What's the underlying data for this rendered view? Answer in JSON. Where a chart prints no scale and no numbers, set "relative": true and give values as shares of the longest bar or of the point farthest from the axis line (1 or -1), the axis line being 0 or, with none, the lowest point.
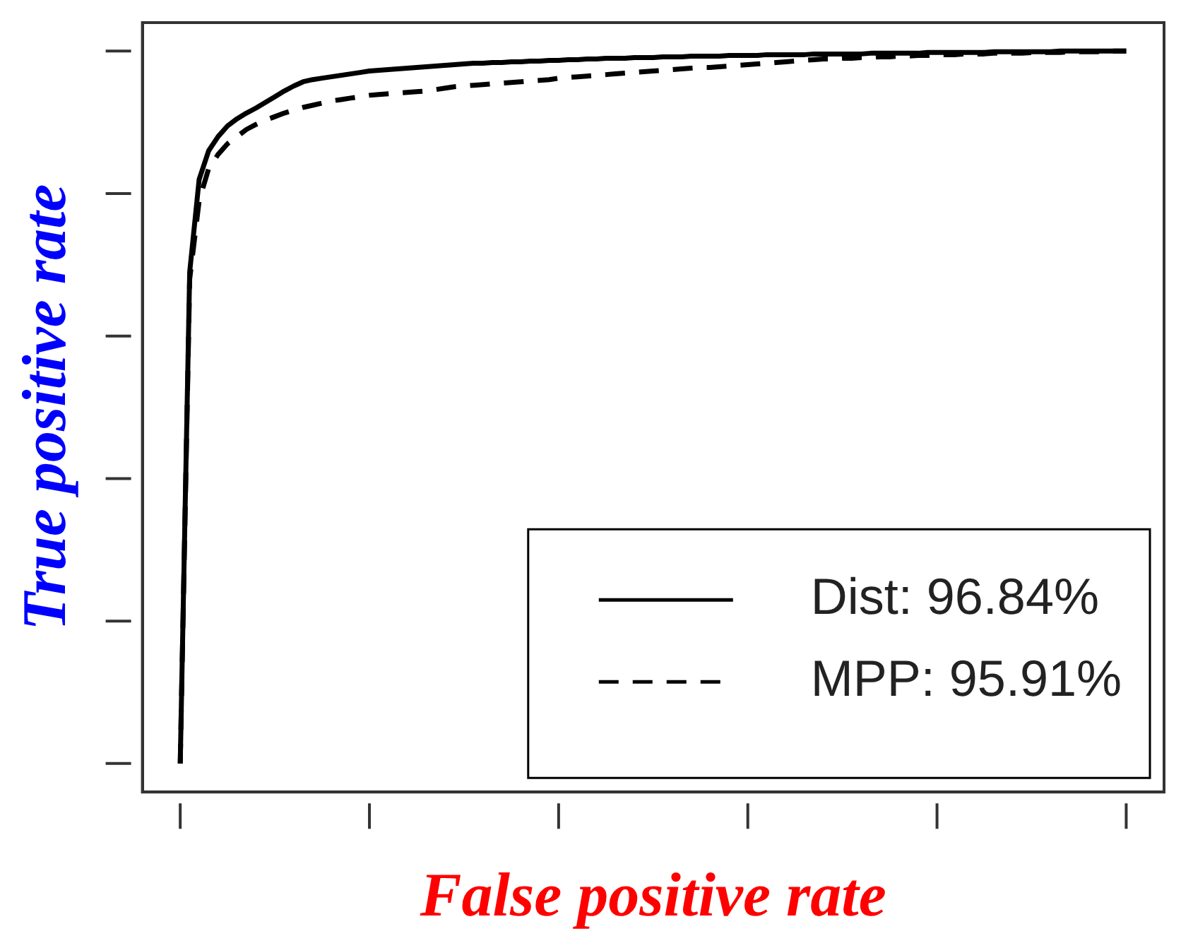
{
  "chart_data": {
    "type": "line",
    "xlabel": "False positive rate",
    "ylabel": "True positive rate",
    "relative": true,
    "grid": false,
    "legend": "bottom right",
    "marker": "none",
    "categories": [
      null,
      null,
      null,
      null,
      null,
      null,
      null,
      null,
      null,
      null,
      null,
      null,
      null,
      null,
      null,
      null,
      null,
      null,
      null,
      null,
      null,
      null,
      null,
      null,
      null,
      null,
      null,
      null,
      null,
      null,
      null,
      null,
      null,
      null,
      null,
      null,
      null,
      null,
      null,
      null,
      null,
      null,
      null,
      null,
      null,
      null,
      null,
      null,
      null,
      null,
      null,
      null,
      null,
      null,
      null,
      null,
      null,
      null,
      null,
      null,
      null,
      null,
      null,
      null,
      null,
      null,
      null,
      null,
      null,
      null,
      null,
      null,
      null,
      null,
      null,
      null,
      null,
      null,
      null,
      null,
      null,
      null,
      null,
      null,
      null,
      null,
      null,
      null,
      null,
      null,
      null,
      null,
      null,
      null,
      null,
      null,
      null,
      null,
      null,
      null,
      null
    ],
    "series": [
      {
        "name": "Dist: 96.84%",
        "color": "#000000",
        "line_style": "solid",
        "values": [
          0,
          0.69,
          0.82,
          0.86,
          0.88,
          0.895,
          0.905,
          0.913,
          0.92,
          0.928,
          0.936,
          0.944,
          0.951,
          0.957,
          0.96,
          0.962,
          0.964,
          0.966,
          0.968,
          0.97,
          0.972,
          0.973,
          0.974,
          0.975,
          0.976,
          0.977,
          0.978,
          0.979,
          0.98,
          0.981,
          0.982,
          0.983,
          0.983,
          0.984,
          0.984,
          0.985,
          0.985,
          0.986,
          0.986,
          0.987,
          0.987,
          0.988,
          0.988,
          0.989,
          0.989,
          0.99,
          0.99,
          0.99,
          0.991,
          0.991,
          0.991,
          0.992,
          0.992,
          0.992,
          0.993,
          0.993,
          0.993,
          0.993,
          0.994,
          0.994,
          0.994,
          0.994,
          0.995,
          0.995,
          0.995,
          0.995,
          0.995,
          0.996,
          0.996,
          0.996,
          0.996,
          0.996,
          0.996,
          0.997,
          0.997,
          0.997,
          0.997,
          0.997,
          0.997,
          0.998,
          0.998,
          0.998,
          0.998,
          0.998,
          0.998,
          0.998,
          0.999,
          0.999,
          0.999,
          0.999,
          0.999,
          0.999,
          0.999,
          1,
          1,
          1,
          1,
          1,
          1,
          1,
          1
        ]
      },
      {
        "name": "MPP: 95.91%",
        "color": "#000000",
        "line_style": "dashed",
        "values": [
          0,
          0.68,
          0.79,
          0.835,
          0.855,
          0.87,
          0.88,
          0.89,
          0.897,
          0.903,
          0.908,
          0.913,
          0.917,
          0.921,
          0.924,
          0.927,
          0.93,
          0.932,
          0.934,
          0.936,
          0.938,
          0.939,
          0.94,
          0.941,
          0.942,
          0.943,
          0.944,
          0.946,
          0.948,
          0.95,
          0.951,
          0.952,
          0.953,
          0.954,
          0.955,
          0.956,
          0.957,
          0.958,
          0.959,
          0.96,
          0.962,
          0.963,
          0.964,
          0.965,
          0.966,
          0.967,
          0.968,
          0.969,
          0.97,
          0.971,
          0.972,
          0.973,
          0.974,
          0.975,
          0.976,
          0.977,
          0.977,
          0.978,
          0.979,
          0.98,
          0.981,
          0.982,
          0.983,
          0.984,
          0.985,
          0.986,
          0.987,
          0.988,
          0.989,
          0.989,
          0.99,
          0.99,
          0.991,
          0.991,
          0.992,
          0.992,
          0.993,
          0.993,
          0.994,
          0.994,
          0.995,
          0.995,
          0.995,
          0.996,
          0.996,
          0.996,
          0.997,
          0.997,
          0.997,
          0.997,
          0.998,
          0.998,
          0.998,
          0.998,
          0.999,
          0.999,
          0.999,
          0.999,
          1,
          1,
          1
        ]
      }
    ]
  }
}
